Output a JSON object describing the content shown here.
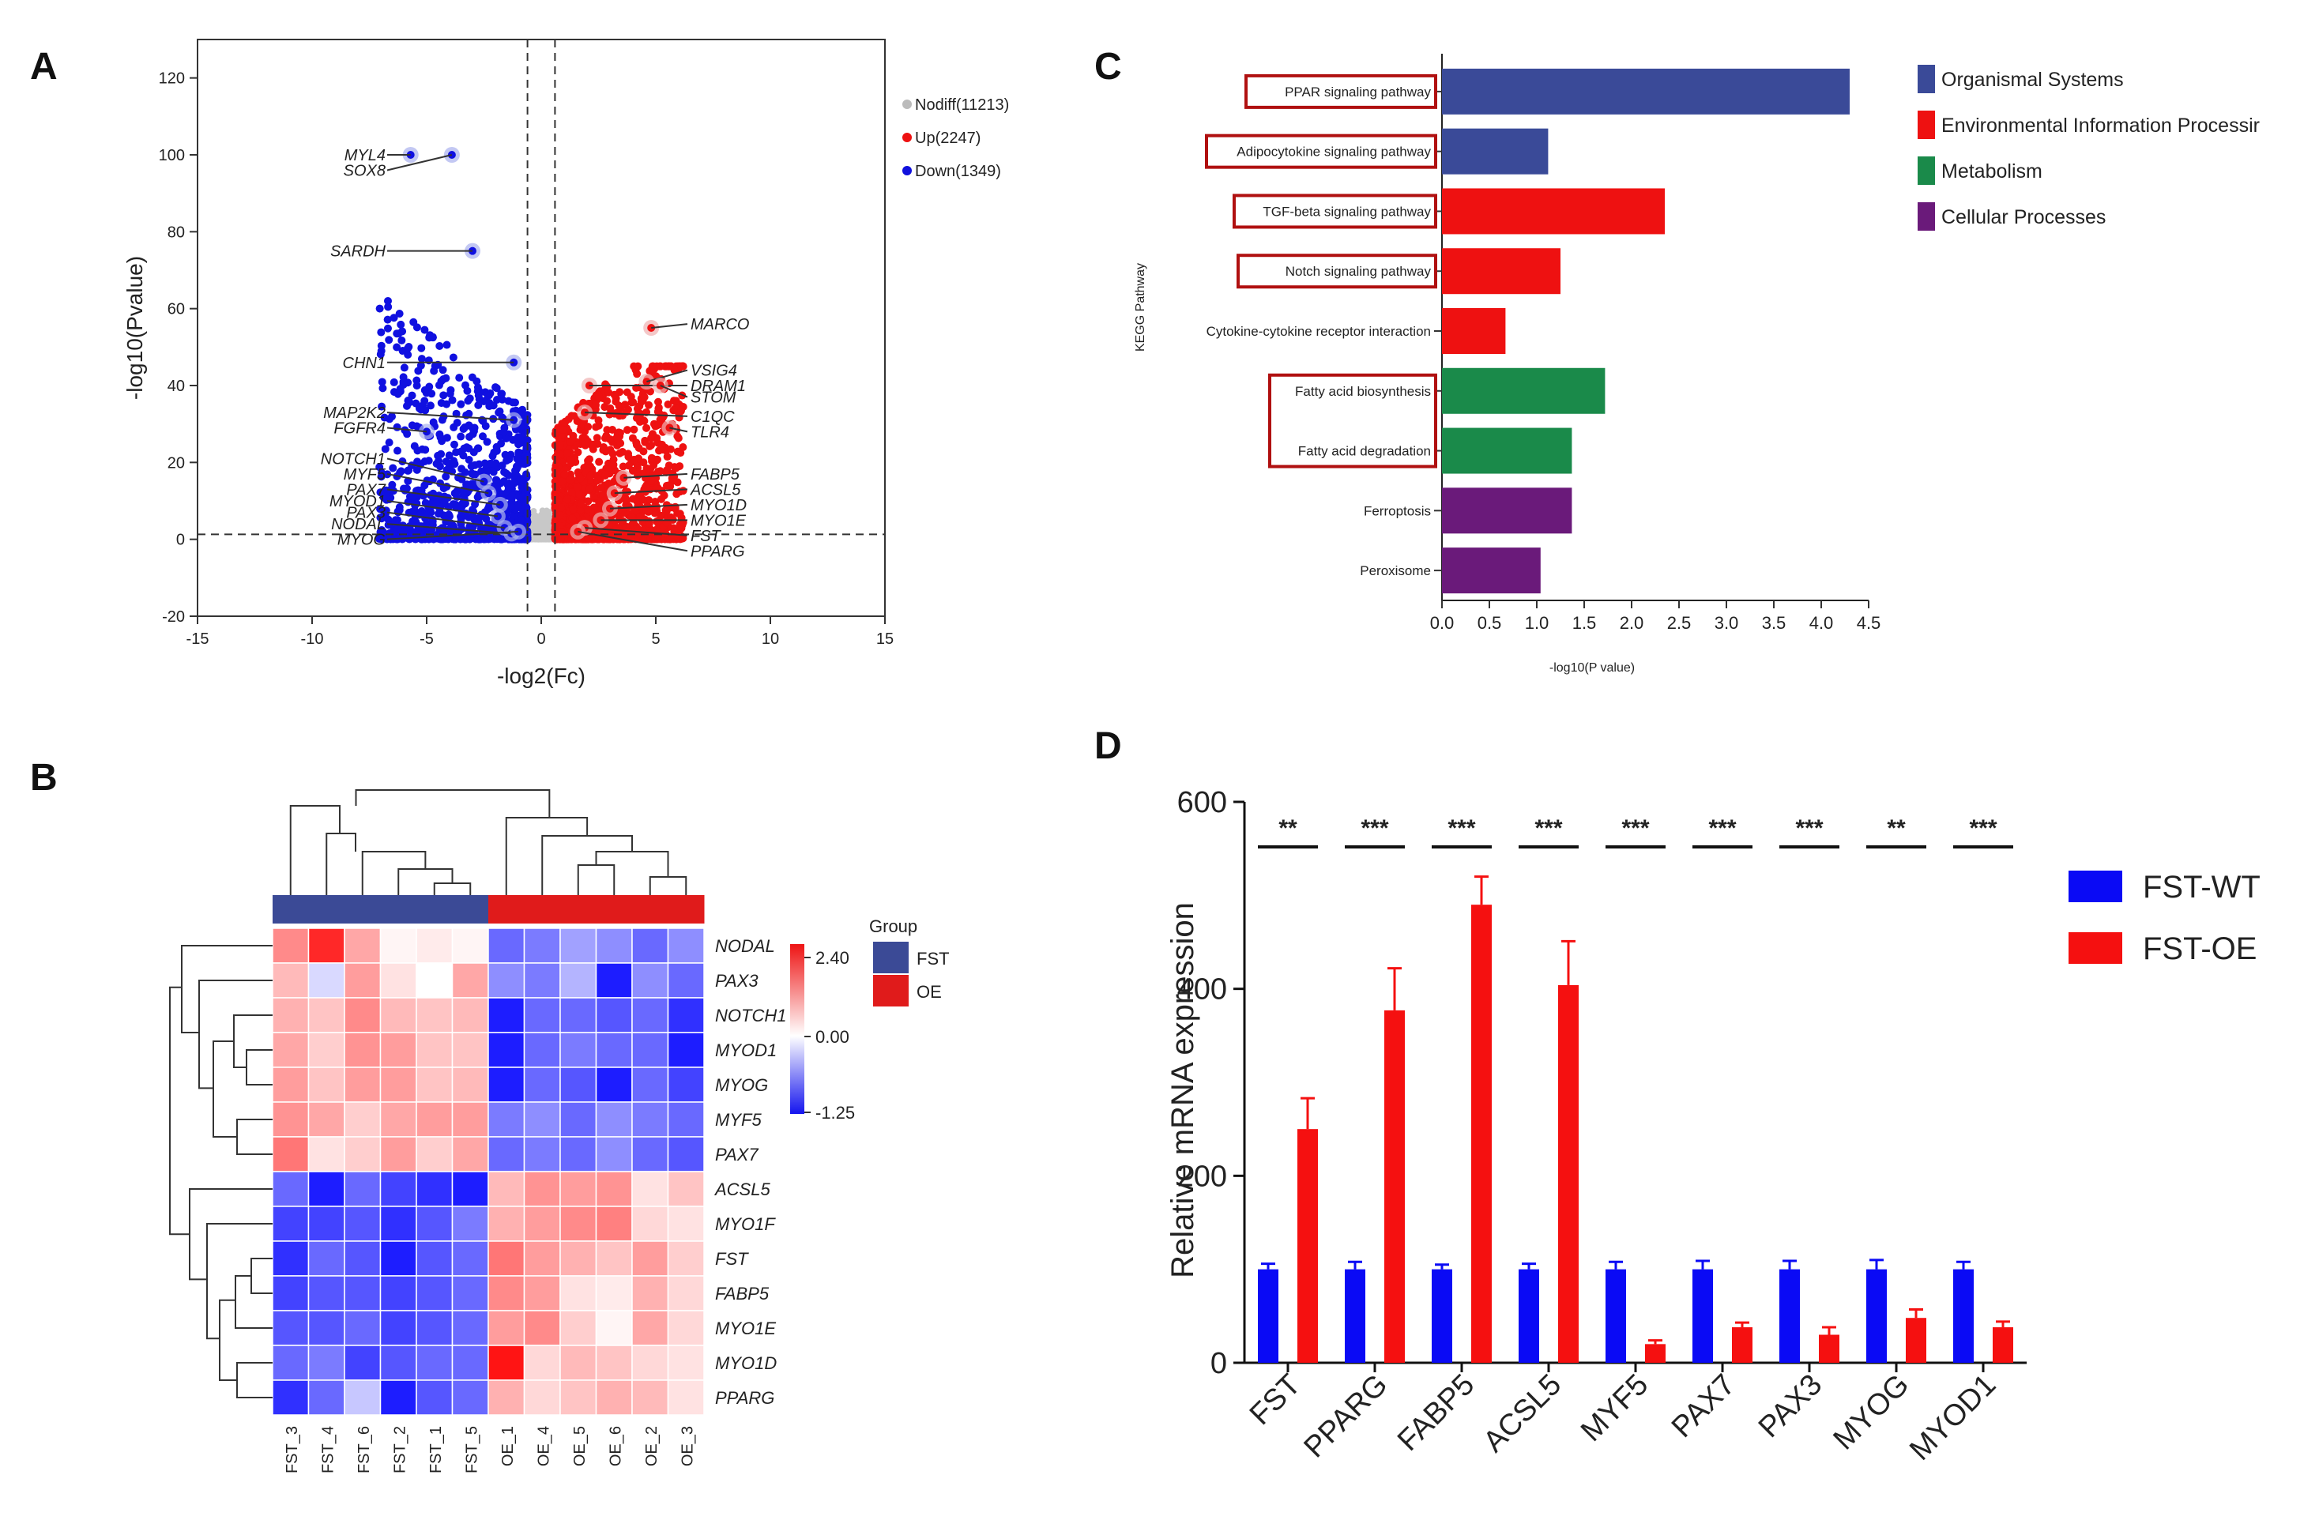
{
  "panels": {
    "a": "A",
    "b": "B",
    "c": "C",
    "d": "D"
  },
  "chart_data": [
    {
      "type": "scatter",
      "panel": "A",
      "title": "",
      "xlabel": "-log2(Fc)",
      "ylabel": "-log10(Pvalue)",
      "xlim": [
        -15,
        15
      ],
      "ylim": [
        -20,
        130
      ],
      "xticks": [
        -15,
        -10,
        -5,
        0,
        5,
        10,
        15
      ],
      "yticks": [
        -20,
        0,
        20,
        40,
        60,
        80,
        100,
        120
      ],
      "threshold_lines": {
        "x": [
          -0.6,
          0.6
        ],
        "y": [
          1.3
        ]
      },
      "legend": [
        {
          "label": "Nodiff(11213)",
          "color": "#bbbbbb"
        },
        {
          "label": "Up(2247)",
          "color": "#ee1111"
        },
        {
          "label": "Down(1349)",
          "color": "#1111dd"
        }
      ],
      "labeled_genes": [
        {
          "gene": "MYL4",
          "x": -5.7,
          "y": 100,
          "group": "down"
        },
        {
          "gene": "SOX8",
          "x": -3.9,
          "y": 100,
          "group": "down"
        },
        {
          "gene": "SARDH",
          "x": -3.0,
          "y": 75,
          "group": "down"
        },
        {
          "gene": "CHN1",
          "x": -1.2,
          "y": 46,
          "group": "down"
        },
        {
          "gene": "MAP2K2",
          "x": -1.2,
          "y": 31,
          "group": "down"
        },
        {
          "gene": "FGFR4",
          "x": -5.0,
          "y": 28,
          "group": "down"
        },
        {
          "gene": "NOTCH1",
          "x": -2.5,
          "y": 15,
          "group": "down"
        },
        {
          "gene": "MYF5",
          "x": -2.3,
          "y": 12,
          "group": "down"
        },
        {
          "gene": "PAX7",
          "x": -1.8,
          "y": 9,
          "group": "down"
        },
        {
          "gene": "MYOD1",
          "x": -1.9,
          "y": 6,
          "group": "down"
        },
        {
          "gene": "PAX3",
          "x": -1.6,
          "y": 3,
          "group": "down"
        },
        {
          "gene": "NODAL",
          "x": -1.3,
          "y": 1.5,
          "group": "down"
        },
        {
          "gene": "MYOG",
          "x": -1.0,
          "y": 2,
          "group": "down"
        },
        {
          "gene": "MARCO",
          "x": 4.8,
          "y": 55,
          "group": "up"
        },
        {
          "gene": "VSIG4",
          "x": 4.6,
          "y": 41,
          "group": "up"
        },
        {
          "gene": "DRAM1",
          "x": 2.1,
          "y": 40,
          "group": "up"
        },
        {
          "gene": "STOM",
          "x": 5.2,
          "y": 40,
          "group": "up"
        },
        {
          "gene": "C1QC",
          "x": 1.9,
          "y": 33,
          "group": "up"
        },
        {
          "gene": "TLR4",
          "x": 5.6,
          "y": 29,
          "group": "up"
        },
        {
          "gene": "FABP5",
          "x": 3.6,
          "y": 16,
          "group": "up"
        },
        {
          "gene": "ACSL5",
          "x": 3.2,
          "y": 12,
          "group": "up"
        },
        {
          "gene": "MYO1D",
          "x": 3.0,
          "y": 8,
          "group": "up"
        },
        {
          "gene": "MYO1E",
          "x": 2.6,
          "y": 5,
          "group": "up"
        },
        {
          "gene": "FST",
          "x": 1.9,
          "y": 3,
          "group": "up"
        },
        {
          "gene": "PPARG",
          "x": 1.6,
          "y": 2,
          "group": "up"
        }
      ]
    },
    {
      "type": "heatmap",
      "panel": "B",
      "columns": [
        "FST_3",
        "FST_4",
        "FST_6",
        "FST_2",
        "FST_1",
        "FST_5",
        "OE_1",
        "OE_4",
        "OE_5",
        "OE_6",
        "OE_2",
        "OE_3"
      ],
      "column_groups": [
        "FST",
        "FST",
        "FST",
        "FST",
        "FST",
        "FST",
        "OE",
        "OE",
        "OE",
        "OE",
        "OE",
        "OE"
      ],
      "rows": [
        "NODAL",
        "PAX3",
        "NOTCH1",
        "MYOD1",
        "MYOG",
        "MYF5",
        "PAX7",
        "ACSL5",
        "MYO1F",
        "FST",
        "FABP5",
        "MYO1E",
        "MYO1D",
        "PPARG"
      ],
      "values": [
        [
          1.2,
          2.2,
          0.9,
          0.1,
          0.2,
          0.1,
          -0.8,
          -0.7,
          -0.5,
          -0.6,
          -0.8,
          -0.6
        ],
        [
          0.7,
          -0.2,
          1.0,
          0.3,
          0.0,
          0.9,
          -0.6,
          -0.7,
          -0.4,
          -1.2,
          -0.6,
          -0.8
        ],
        [
          0.8,
          0.6,
          1.2,
          0.7,
          0.6,
          0.7,
          -1.2,
          -0.8,
          -0.8,
          -0.9,
          -0.8,
          -1.1
        ],
        [
          0.9,
          0.5,
          1.1,
          1.0,
          0.6,
          0.6,
          -1.2,
          -0.8,
          -0.7,
          -0.8,
          -0.8,
          -1.2
        ],
        [
          1.0,
          0.6,
          1.0,
          1.0,
          0.6,
          0.7,
          -1.2,
          -0.8,
          -0.9,
          -1.2,
          -0.8,
          -1.0
        ],
        [
          1.1,
          0.9,
          0.5,
          0.9,
          1.0,
          1.0,
          -0.7,
          -0.6,
          -0.8,
          -0.6,
          -0.7,
          -0.8
        ],
        [
          1.4,
          0.3,
          0.5,
          1.0,
          0.5,
          0.9,
          -0.8,
          -0.7,
          -0.8,
          -0.6,
          -0.8,
          -0.9
        ],
        [
          -0.8,
          -1.2,
          -0.8,
          -1.0,
          -1.1,
          -1.2,
          0.7,
          1.1,
          1.0,
          1.1,
          0.3,
          0.6
        ],
        [
          -1.0,
          -1.0,
          -0.9,
          -1.1,
          -0.9,
          -0.7,
          0.8,
          1.0,
          1.2,
          1.3,
          0.4,
          0.3
        ],
        [
          -1.1,
          -0.8,
          -0.9,
          -1.2,
          -0.9,
          -0.8,
          1.4,
          1.0,
          0.8,
          0.6,
          1.0,
          0.5
        ],
        [
          -1.0,
          -0.9,
          -0.9,
          -1.0,
          -0.9,
          -0.8,
          1.2,
          1.0,
          0.3,
          0.2,
          0.8,
          0.4
        ],
        [
          -0.9,
          -0.9,
          -0.8,
          -1.0,
          -0.9,
          -0.8,
          1.0,
          1.2,
          0.5,
          0.1,
          0.9,
          0.4
        ],
        [
          -0.8,
          -0.7,
          -1.0,
          -0.9,
          -0.8,
          -0.8,
          2.4,
          0.4,
          0.7,
          0.6,
          0.4,
          0.3
        ],
        [
          -1.1,
          -0.8,
          -0.3,
          -1.2,
          -0.9,
          -0.8,
          0.8,
          0.4,
          0.6,
          0.8,
          0.7,
          0.3
        ]
      ],
      "color_scale": {
        "min": -1.25,
        "mid": 0.0,
        "max": 2.4,
        "labels": [
          "2.40",
          "0.00",
          "-1.25"
        ]
      },
      "legend_title": "Group",
      "groups": [
        {
          "label": "FST",
          "color": "#3b4a96"
        },
        {
          "label": "OE",
          "color": "#e01b1b"
        }
      ]
    },
    {
      "type": "bar",
      "panel": "C",
      "orientation": "horizontal",
      "ylabel": "KEGG Pathway",
      "xlabel": "-log10(P value)",
      "xlim": [
        0,
        4.5
      ],
      "xticks": [
        "0.0",
        "0.5",
        "1.0",
        "1.5",
        "2.0",
        "2.5",
        "3.0",
        "3.5",
        "4.0",
        "4.5"
      ],
      "categories": [
        "PPAR signaling pathway",
        "Adipocytokine signaling pathway",
        "TGF-beta signaling pathway",
        "Notch signaling pathway",
        "Cytokine-cytokine receptor interaction",
        "Fatty acid biosynthesis",
        "Fatty acid degradation",
        "Ferroptosis",
        "Peroxisome"
      ],
      "values": [
        4.3,
        1.12,
        2.35,
        1.25,
        0.67,
        1.72,
        1.37,
        1.37,
        1.04
      ],
      "classes": [
        "Organismal Systems",
        "Organismal Systems",
        "Environmental Information Processing",
        "Environmental Information Processing",
        "Environmental Information Processing",
        "Metabolism",
        "Metabolism",
        "Cellular Processes",
        "Cellular Processes"
      ],
      "highlighted": [
        true,
        true,
        true,
        true,
        false,
        true,
        true,
        false,
        false
      ],
      "legend": [
        {
          "label": "Organismal Systems",
          "color": "#3a4a98"
        },
        {
          "label": "Environmental Information Processir",
          "color": "#ee1111"
        },
        {
          "label": "Metabolism",
          "color": "#1a8a4a"
        },
        {
          "label": "Cellular Processes",
          "color": "#6a1a7a"
        }
      ]
    },
    {
      "type": "bar",
      "panel": "D",
      "ylabel": "Relative mRNA expression",
      "ylim": [
        0,
        600
      ],
      "yticks": [
        0,
        200,
        400,
        600
      ],
      "categories": [
        "FST",
        "PPARG",
        "FABP5",
        "ACSL5",
        "MYF5",
        "PAX7",
        "PAX3",
        "MYOG",
        "MYOD1"
      ],
      "series": [
        {
          "name": "FST-WT",
          "color": "#0a0af5",
          "values": [
            100,
            100,
            100,
            100,
            100,
            100,
            100,
            100,
            100
          ],
          "errors": [
            6,
            8,
            5,
            6,
            8,
            9,
            9,
            10,
            8
          ]
        },
        {
          "name": "FST-OE",
          "color": "#f51010",
          "values": [
            250,
            377,
            490,
            404,
            20,
            38,
            30,
            48,
            38
          ],
          "errors": [
            33,
            45,
            30,
            47,
            4,
            5,
            8,
            9,
            6
          ]
        }
      ],
      "significance": [
        "**",
        "***",
        "***",
        "***",
        "***",
        "***",
        "***",
        "**",
        "***"
      ]
    }
  ]
}
